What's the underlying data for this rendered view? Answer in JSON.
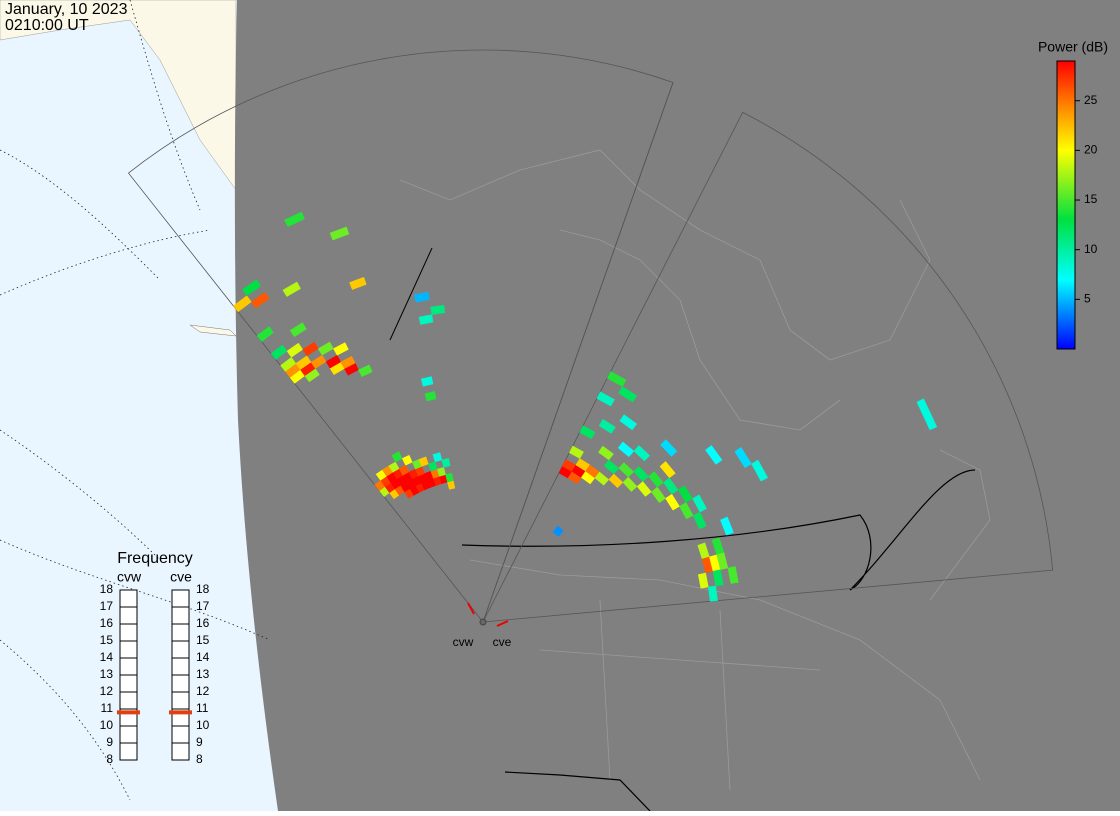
{
  "header": {
    "date": "January, 10 2023",
    "time": "0210:00 UT"
  },
  "colorbar": {
    "title": "Power (dB)",
    "range": [
      0,
      29
    ],
    "ticks": [
      5,
      10,
      15,
      20,
      25
    ]
  },
  "frequency": {
    "title": "Frequency",
    "range": [
      8,
      18
    ],
    "ticks": [
      8,
      9,
      10,
      11,
      12,
      13,
      14,
      15,
      16,
      17,
      18
    ],
    "radars": [
      {
        "name": "cvw",
        "value": 10.8
      },
      {
        "name": "cve",
        "value": 10.8
      }
    ]
  },
  "cells": {
    "cvw": [
      [
        0,
        21,
        18
      ],
      [
        0,
        22,
        25
      ],
      [
        1,
        20,
        22
      ],
      [
        1,
        21,
        28
      ],
      [
        1,
        22,
        27
      ],
      [
        1,
        23,
        20
      ],
      [
        2,
        20,
        26
      ],
      [
        2,
        21,
        29
      ],
      [
        2,
        22,
        29
      ],
      [
        2,
        23,
        24
      ],
      [
        3,
        19,
        27
      ],
      [
        3,
        20,
        29
      ],
      [
        3,
        21,
        29
      ],
      [
        3,
        22,
        28
      ],
      [
        3,
        23,
        18
      ],
      [
        4,
        19,
        29
      ],
      [
        4,
        20,
        29
      ],
      [
        4,
        21,
        29
      ],
      [
        4,
        22,
        26
      ],
      [
        4,
        24,
        14
      ],
      [
        5,
        19,
        28
      ],
      [
        5,
        20,
        29
      ],
      [
        5,
        21,
        28
      ],
      [
        5,
        23,
        20
      ],
      [
        6,
        19,
        29
      ],
      [
        6,
        20,
        29
      ],
      [
        6,
        21,
        27
      ],
      [
        6,
        22,
        16
      ],
      [
        7,
        19,
        29
      ],
      [
        7,
        20,
        29
      ],
      [
        7,
        22,
        22
      ],
      [
        8,
        19,
        28
      ],
      [
        8,
        20,
        25
      ],
      [
        8,
        21,
        12
      ],
      [
        9,
        19,
        29
      ],
      [
        9,
        20,
        17
      ],
      [
        9,
        22,
        8
      ],
      [
        10,
        18,
        22
      ],
      [
        10,
        19,
        14
      ],
      [
        10,
        21,
        10
      ],
      [
        0,
        40,
        20
      ],
      [
        0,
        41,
        24
      ],
      [
        0,
        42,
        18
      ],
      [
        0,
        44,
        12
      ],
      [
        0,
        47,
        14
      ],
      [
        0,
        52,
        22
      ],
      [
        1,
        39,
        17
      ],
      [
        1,
        40,
        28
      ],
      [
        1,
        41,
        22
      ],
      [
        1,
        43,
        19
      ],
      [
        1,
        51,
        26
      ],
      [
        1,
        53,
        13
      ],
      [
        2,
        40,
        24
      ],
      [
        2,
        42,
        27
      ],
      [
        2,
        45,
        15
      ],
      [
        3,
        38,
        21
      ],
      [
        3,
        39,
        29
      ],
      [
        3,
        41,
        16
      ],
      [
        3,
        50,
        18
      ],
      [
        4,
        37,
        29
      ],
      [
        4,
        38,
        24
      ],
      [
        4,
        40,
        20
      ],
      [
        5,
        36,
        15
      ],
      [
        5,
        58,
        14
      ],
      [
        7,
        54,
        16
      ],
      [
        7,
        47,
        22
      ],
      [
        11,
        43,
        5
      ],
      [
        11,
        40,
        9
      ],
      [
        12,
        41,
        11
      ],
      [
        10,
        32,
        8
      ],
      [
        10,
        30,
        14
      ]
    ],
    "cve": [
      [
        0,
        22,
        29
      ],
      [
        0,
        23,
        27
      ],
      [
        0,
        25,
        18
      ],
      [
        0,
        28,
        12
      ],
      [
        0,
        33,
        9
      ],
      [
        0,
        36,
        14
      ],
      [
        1,
        22,
        26
      ],
      [
        1,
        23,
        29
      ],
      [
        1,
        24,
        22
      ],
      [
        1,
        30,
        10
      ],
      [
        1,
        35,
        12
      ],
      [
        2,
        23,
        20
      ],
      [
        2,
        24,
        25
      ],
      [
        2,
        27,
        17
      ],
      [
        2,
        32,
        8
      ],
      [
        3,
        15,
        4
      ],
      [
        3,
        24,
        18
      ],
      [
        3,
        26,
        12
      ],
      [
        3,
        29,
        7
      ],
      [
        4,
        25,
        22
      ],
      [
        4,
        27,
        15
      ],
      [
        4,
        30,
        9
      ],
      [
        5,
        26,
        17
      ],
      [
        5,
        28,
        12
      ],
      [
        5,
        33,
        6
      ],
      [
        6,
        27,
        19
      ],
      [
        6,
        29,
        14
      ],
      [
        6,
        31,
        21
      ],
      [
        7,
        28,
        16
      ],
      [
        7,
        30,
        11
      ],
      [
        7,
        37,
        7
      ],
      [
        8,
        29,
        20
      ],
      [
        8,
        31,
        13
      ],
      [
        8,
        40,
        6
      ],
      [
        9,
        30,
        15
      ],
      [
        9,
        32,
        9
      ],
      [
        9,
        41,
        8
      ],
      [
        10,
        31,
        12
      ],
      [
        10,
        64,
        8
      ],
      [
        12,
        30,
        18
      ],
      [
        12,
        32,
        14
      ],
      [
        13,
        30,
        26
      ],
      [
        13,
        31,
        20
      ],
      [
        13,
        32,
        16
      ],
      [
        14,
        29,
        19
      ],
      [
        14,
        31,
        12
      ],
      [
        14,
        33,
        15
      ],
      [
        15,
        30,
        9
      ],
      [
        11,
        34,
        7
      ]
    ]
  }
}
